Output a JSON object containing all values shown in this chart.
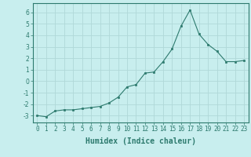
{
  "x": [
    0,
    1,
    2,
    3,
    4,
    5,
    6,
    7,
    8,
    9,
    10,
    11,
    12,
    13,
    14,
    15,
    16,
    17,
    18,
    19,
    20,
    21,
    22,
    23
  ],
  "y": [
    -3.0,
    -3.1,
    -2.6,
    -2.5,
    -2.5,
    -2.4,
    -2.3,
    -2.2,
    -1.9,
    -1.4,
    -0.5,
    -0.3,
    0.7,
    0.8,
    1.7,
    2.8,
    4.8,
    6.2,
    4.1,
    3.2,
    2.6,
    1.7,
    1.7,
    1.8
  ],
  "xlabel": "Humidex (Indice chaleur)",
  "xlim": [
    -0.5,
    23.5
  ],
  "ylim": [
    -3.6,
    6.8
  ],
  "yticks": [
    -3,
    -2,
    -1,
    0,
    1,
    2,
    3,
    4,
    5,
    6
  ],
  "xticks": [
    0,
    1,
    2,
    3,
    4,
    5,
    6,
    7,
    8,
    9,
    10,
    11,
    12,
    13,
    14,
    15,
    16,
    17,
    18,
    19,
    20,
    21,
    22,
    23
  ],
  "line_color": "#2d7a6e",
  "marker_color": "#2d7a6e",
  "bg_color": "#c8eeee",
  "grid_color": "#b0d8d8",
  "spine_color": "#2d7a6e",
  "xlabel_fontsize": 7,
  "tick_fontsize": 5.5
}
